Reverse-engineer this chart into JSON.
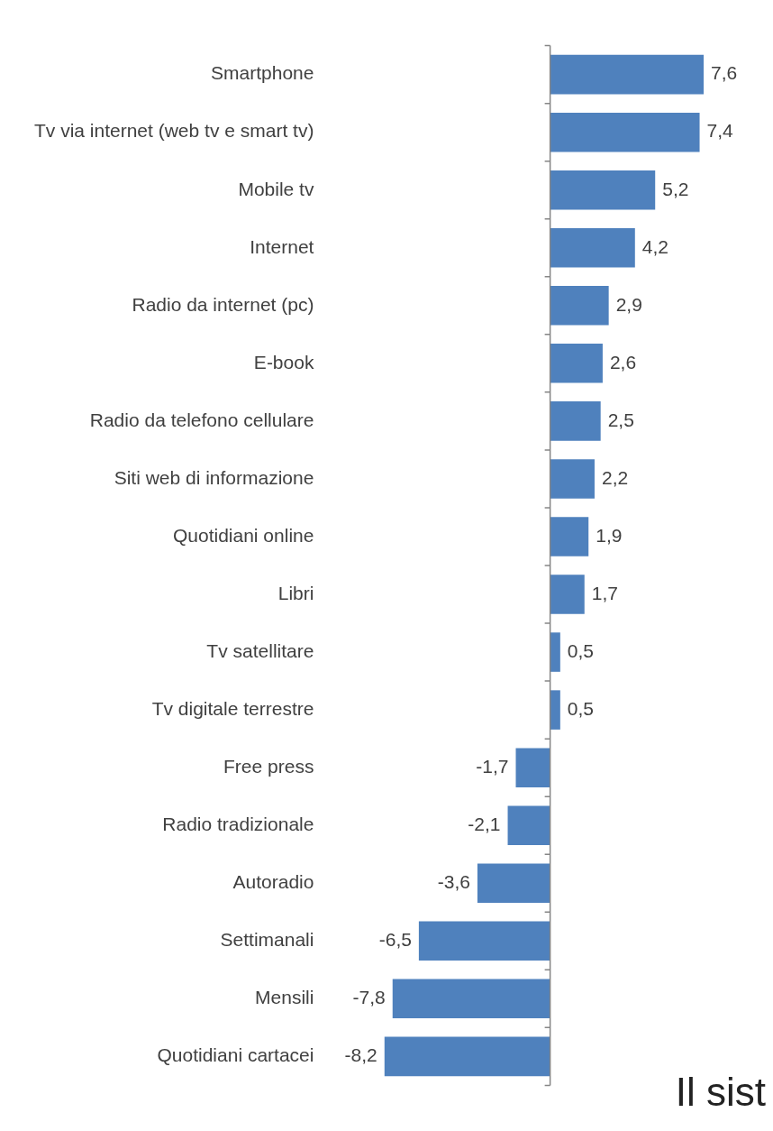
{
  "chart_data": {
    "type": "bar",
    "orientation": "horizontal",
    "categories": [
      "Smartphone",
      "Tv via internet (web tv e smart tv)",
      "Mobile tv",
      "Internet",
      "Radio da internet (pc)",
      "E-book",
      "Radio da telefono cellulare",
      "Siti web di informazione",
      "Quotidiani online",
      "Libri",
      "Tv satellitare",
      "Tv digitale terrestre",
      "Free press",
      "Radio tradizionale",
      "Autoradio",
      "Settimanali",
      "Mensili",
      "Quotidiani cartacei"
    ],
    "values": [
      7.6,
      7.4,
      5.2,
      4.2,
      2.9,
      2.6,
      2.5,
      2.2,
      1.9,
      1.7,
      0.5,
      0.5,
      -1.7,
      -2.1,
      -3.6,
      -6.5,
      -7.8,
      -8.2
    ],
    "value_labels": [
      "7,6",
      "7,4",
      "5,2",
      "4,2",
      "2,9",
      "2,6",
      "2,5",
      "2,2",
      "1,9",
      "1,7",
      "0,5",
      "0,5",
      "-1,7",
      "-2,1",
      "-3,6",
      "-6,5",
      "-7,8",
      "-8,2"
    ],
    "color": "#4f81bd",
    "annotations": [
      "Il sist"
    ]
  }
}
